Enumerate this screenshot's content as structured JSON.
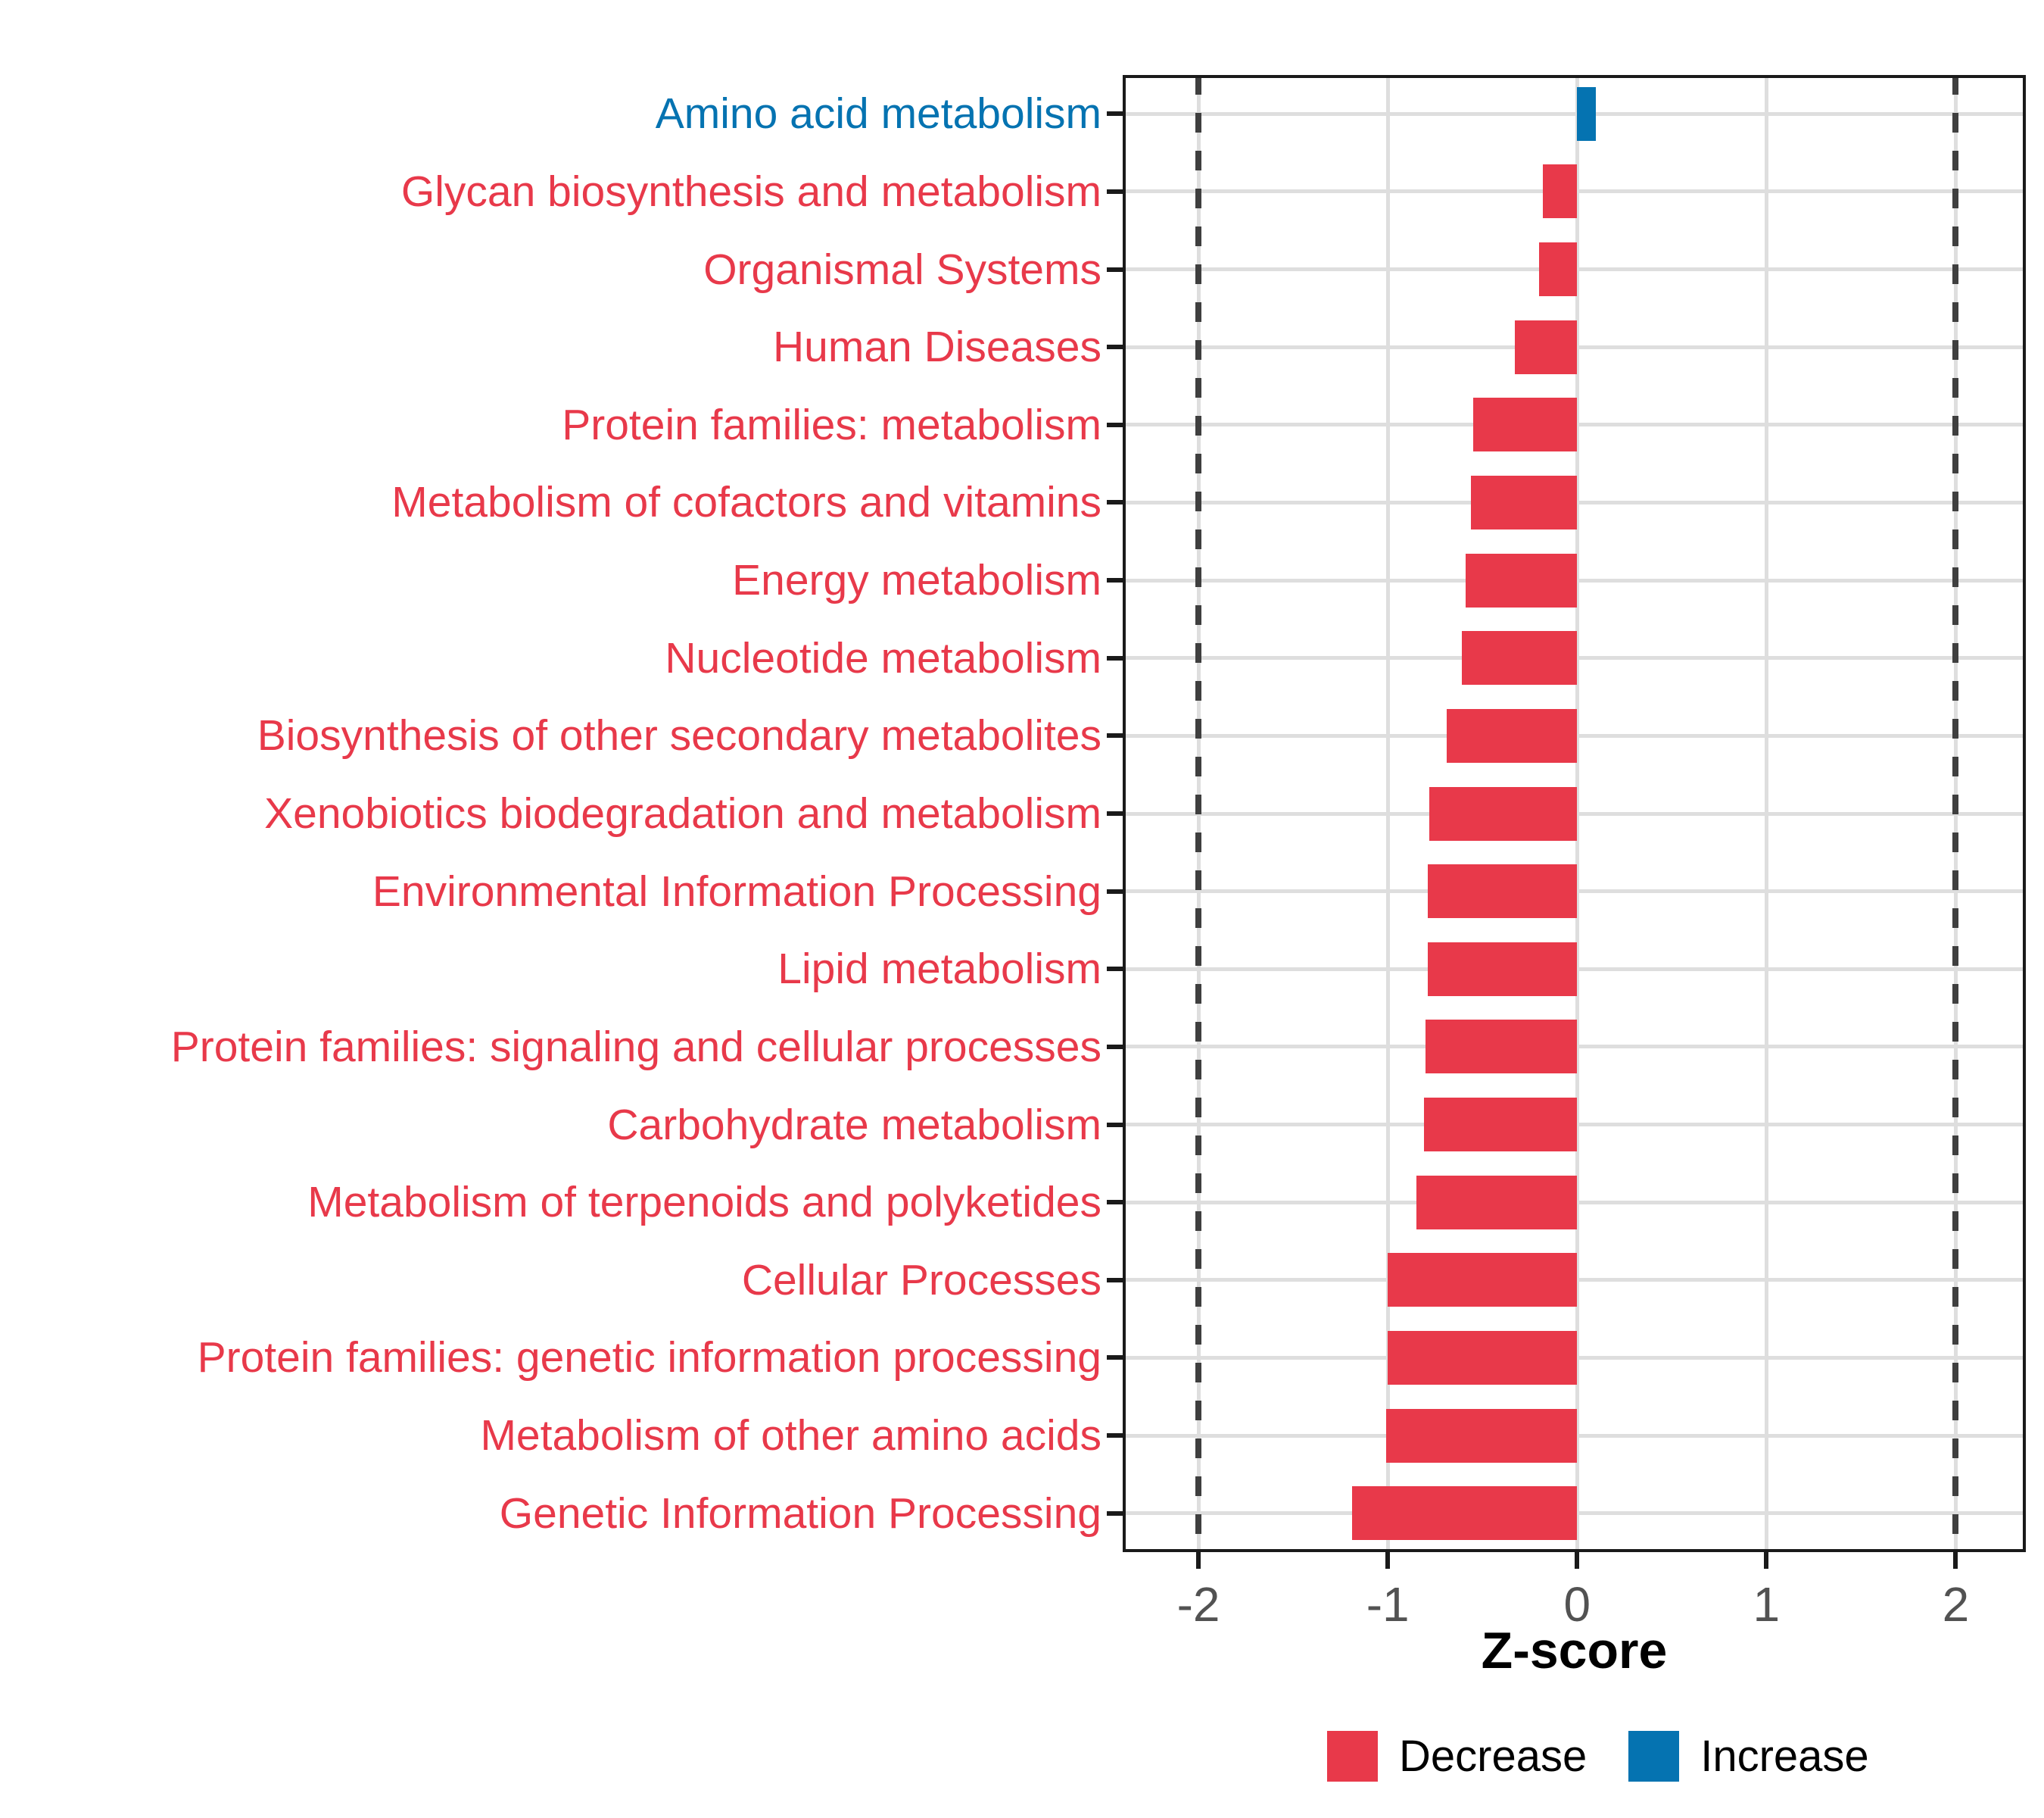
{
  "chart_data": {
    "type": "bar",
    "orientation": "horizontal",
    "xlabel": "Z-score",
    "x_ticks": [
      -2,
      -1,
      0,
      1,
      2
    ],
    "x_tick_labels": [
      "-2",
      "-1",
      "0",
      "1",
      "2"
    ],
    "xlim": [
      -2.4,
      2.37
    ],
    "reference_lines_dashed": [
      -2,
      2
    ],
    "grid": "major-only",
    "legend_position": "bottom",
    "categories": [
      "Amino acid metabolism",
      "Glycan biosynthesis and metabolism",
      "Organismal Systems",
      "Human Diseases",
      "Protein families: metabolism",
      "Metabolism of cofactors and vitamins",
      "Energy metabolism",
      "Nucleotide metabolism",
      "Biosynthesis of other secondary metabolites",
      "Xenobiotics biodegradation and metabolism",
      "Environmental Information Processing",
      "Lipid metabolism",
      "Protein families: signaling and cellular processes",
      "Carbohydrate metabolism",
      "Metabolism of terpenoids and polyketides",
      "Cellular Processes",
      "Protein families: genetic information processing",
      "Metabolism of other amino acids",
      "Genetic Information Processing"
    ],
    "series": [
      {
        "name": "Z-score",
        "values": [
          0.1,
          -0.18,
          -0.2,
          -0.33,
          -0.55,
          -0.56,
          -0.59,
          -0.61,
          -0.69,
          -0.78,
          -0.79,
          -0.79,
          -0.8,
          -0.81,
          -0.85,
          -1.0,
          -1.0,
          -1.01,
          -1.19
        ]
      }
    ],
    "directions": [
      "increase",
      "decrease",
      "decrease",
      "decrease",
      "decrease",
      "decrease",
      "decrease",
      "decrease",
      "decrease",
      "decrease",
      "decrease",
      "decrease",
      "decrease",
      "decrease",
      "decrease",
      "decrease",
      "decrease",
      "decrease",
      "decrease"
    ],
    "legend": [
      {
        "label": "Decrease",
        "color": "#E8394A"
      },
      {
        "label": "Increase",
        "color": "#0573B1"
      }
    ]
  },
  "colors": {
    "decrease": "#E8394A",
    "increase": "#0573B1",
    "grid": "#DEDEDE",
    "dashed_line": "#3F3F3F",
    "panel_border": "#1A1A1A",
    "axis_tick_text": "#525252",
    "axis_title_text": "#000000"
  }
}
